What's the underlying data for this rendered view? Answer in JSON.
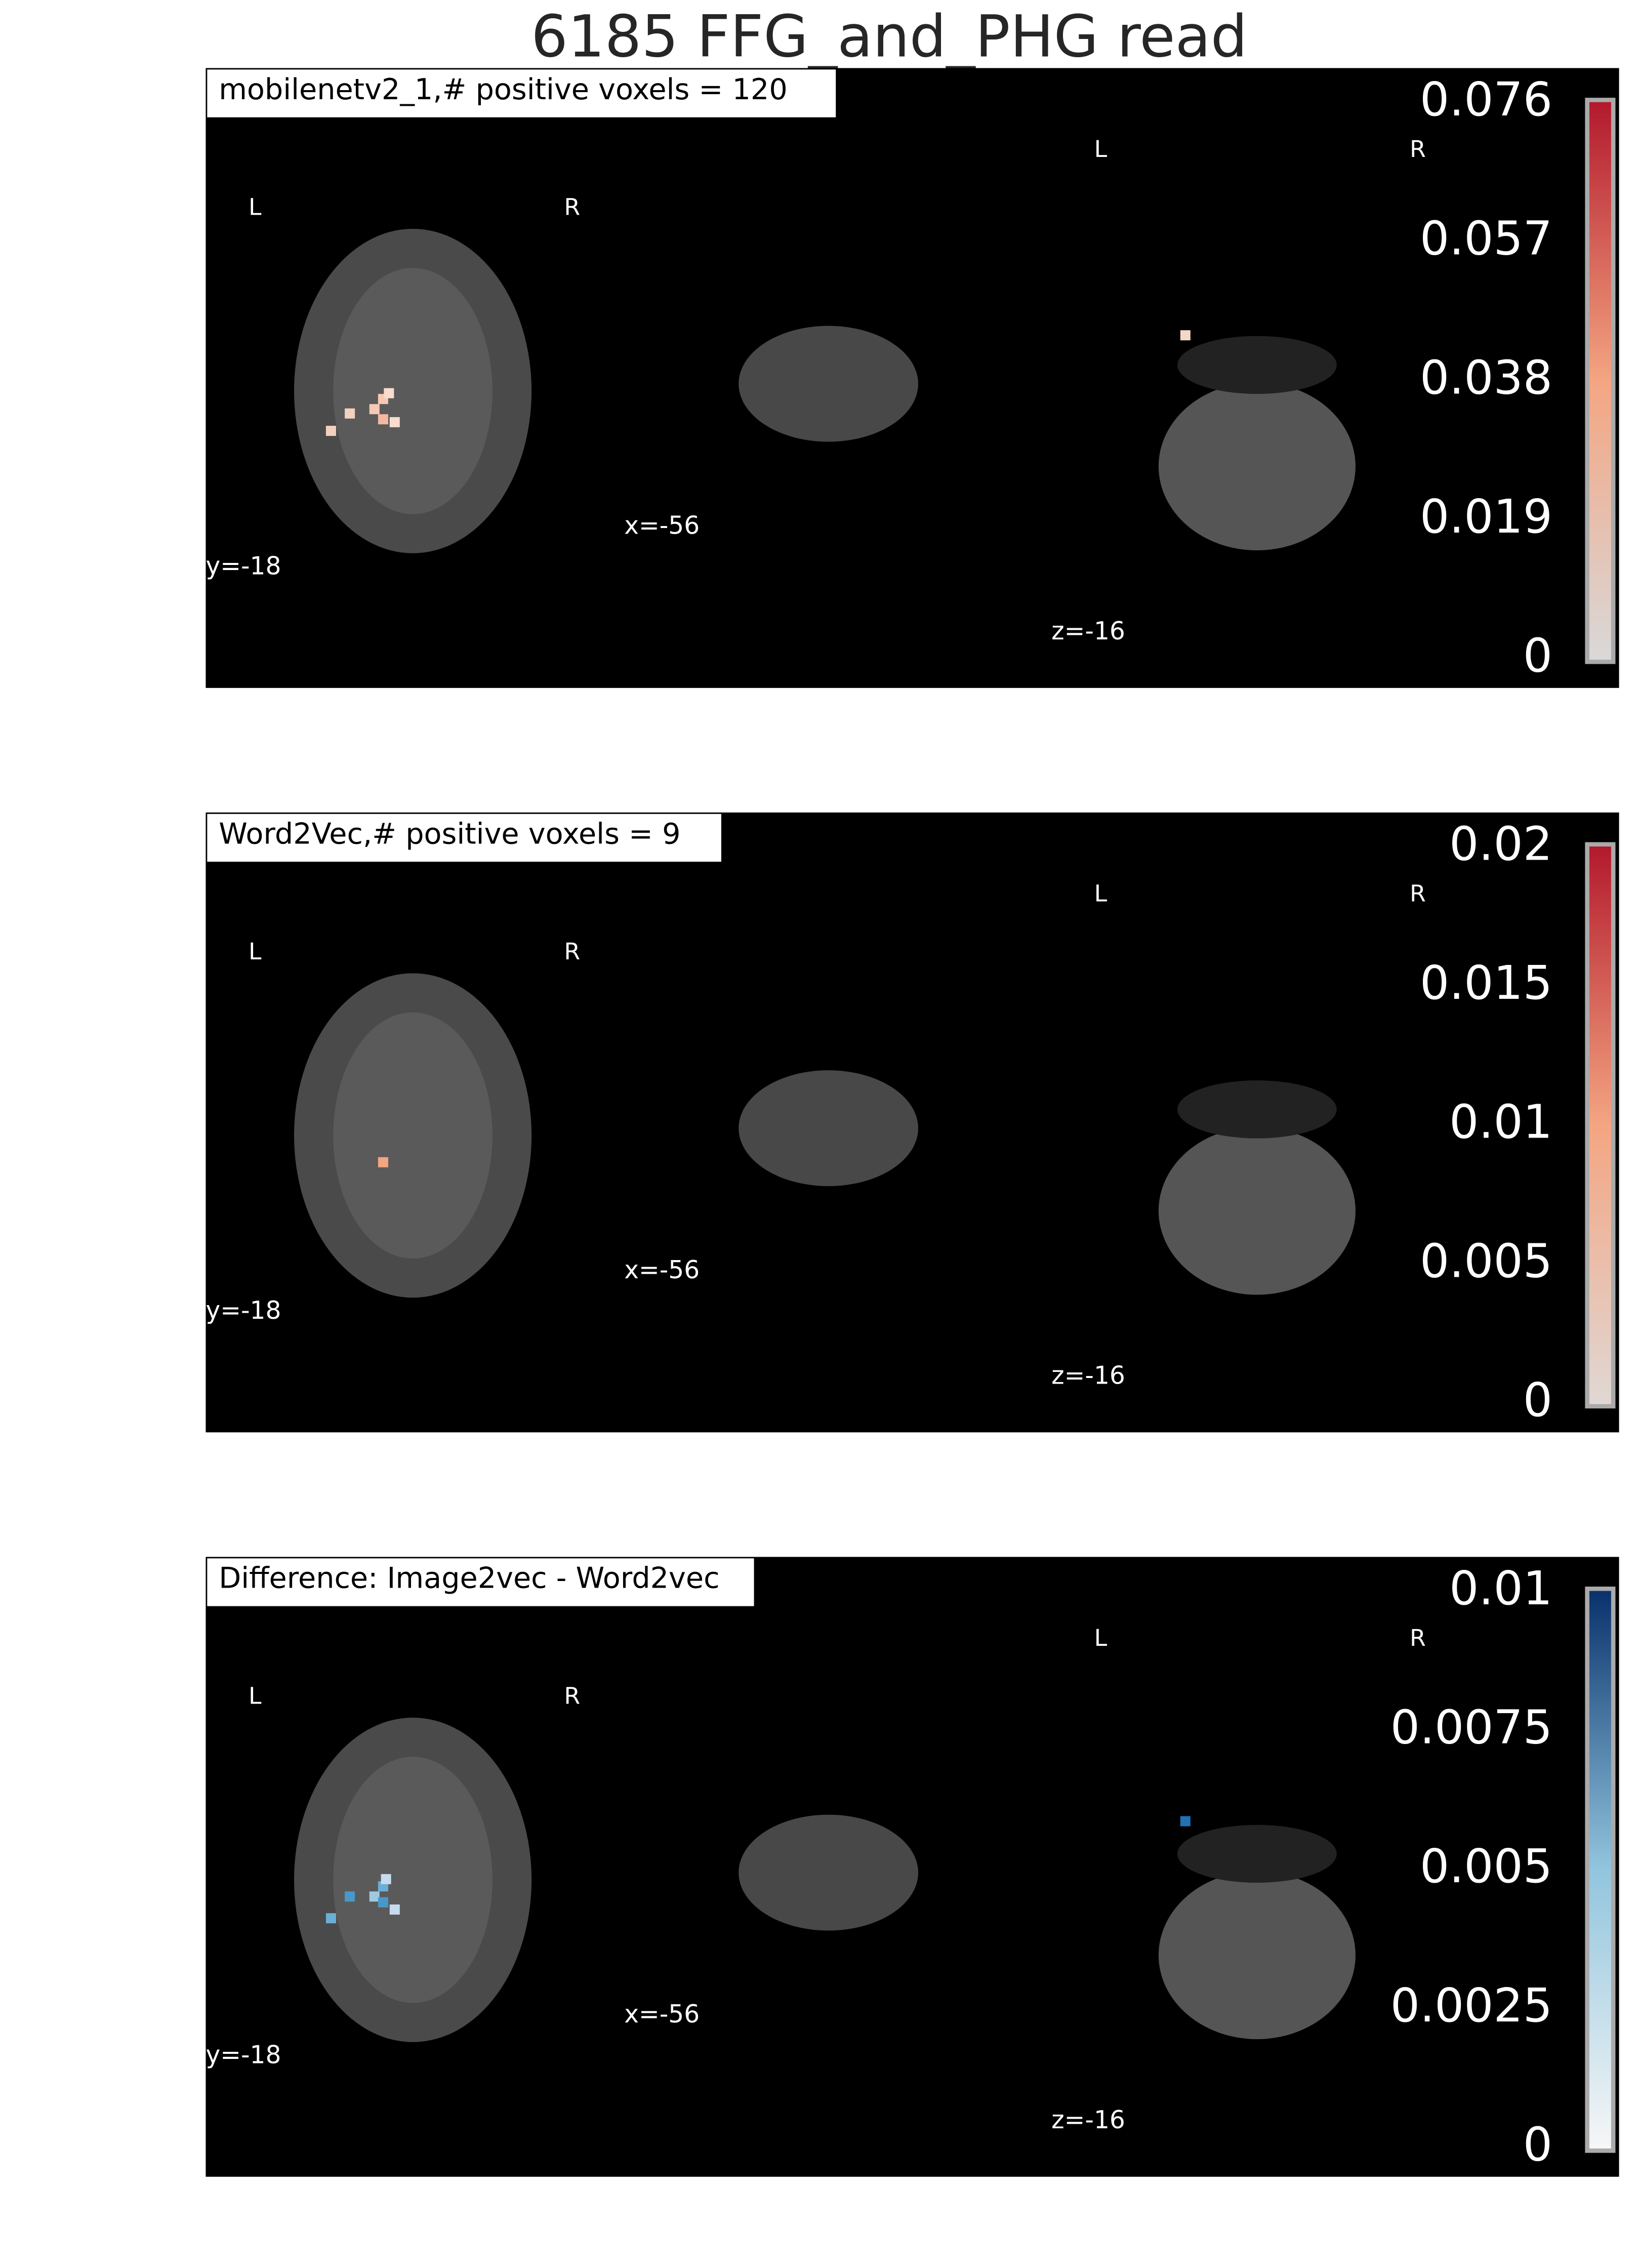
{
  "title": "6185 FFG_and_PHG read",
  "panels": [
    {
      "title": "mobilenetv2_1,# positive voxels = 120",
      "orientation": [
        "L",
        "R",
        "L",
        "R"
      ],
      "coords": [
        "y=-18",
        "x=-56",
        "z=-16"
      ],
      "colorbar": {
        "lim": [
          0,
          0.076
        ],
        "ticks": [
          0,
          0.019,
          0.038,
          0.057,
          0.076
        ],
        "colors": [
          "#d9d9d9",
          "#f4a582",
          "#b2182b"
        ]
      }
    },
    {
      "title": "Word2Vec,# positive voxels = 9",
      "orientation": [
        "L",
        "R",
        "L",
        "R"
      ],
      "coords": [
        "y=-18",
        "x=-56",
        "z=-16"
      ],
      "colorbar": {
        "lim": [
          0,
          0.02
        ],
        "ticks": [
          0,
          0.005,
          0.01,
          0.015,
          0.02
        ],
        "colors": [
          "#e0d8d4",
          "#f4a582",
          "#b2182b"
        ]
      }
    },
    {
      "title": "Difference: Image2vec - Word2vec",
      "orientation": [
        "L",
        "R",
        "L",
        "R"
      ],
      "coords": [
        "y=-18",
        "x=-56",
        "z=-16"
      ],
      "colorbar": {
        "lim": [
          0,
          0.01
        ],
        "ticks": [
          0,
          0.0025,
          0.005,
          0.0075,
          0.01
        ],
        "colors": [
          "#f7f7f7",
          "#92c5de",
          "#08306b"
        ]
      }
    }
  ]
}
